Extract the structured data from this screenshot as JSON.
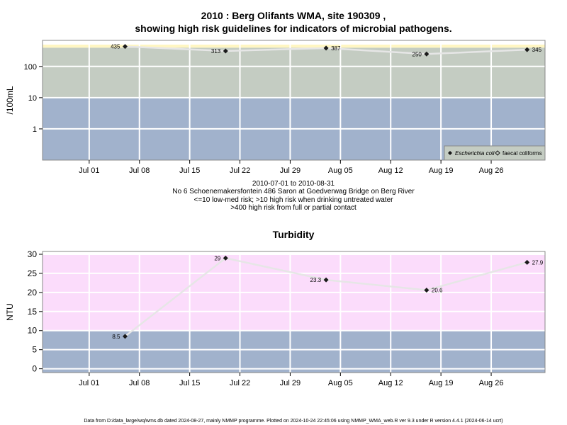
{
  "title_line1": "2010 : Berg Olifants WMA, site 190309 ,",
  "title_line2": "showing high risk guidelines for indicators of microbial pathogens.",
  "info": {
    "date_range": "2010-07-01 to 2010-08-31",
    "site_name": "No 6 Schoenemakersfontein 486 Saron at Goedverwag Bridge on Berg River",
    "guideline1": "<=10 low-med risk; >10 high risk when drinking untreated water",
    "guideline2": ">400 high risk from full or partial contact"
  },
  "footer": "Data from D:/data_large/wq/wms.db dated 2024-08-27, mainly NMMP programme. Plotted on 2024-10-24 22:45:06 using NMMP_WMA_web.R ver 9.3 under R version 4.4.1 (2024-06-14 ucrt)",
  "colors": {
    "band_low": "#a1b2cc",
    "band_mid": "#c4ccc2",
    "band_high": "#fff6c2",
    "turbidity_high": "#fbdcfb",
    "grid": "#ffffff",
    "series_line": "#e6e6e6",
    "point": "#1a1a1a"
  },
  "chart_data": [
    {
      "type": "line",
      "title": "",
      "xlabel": "",
      "ylabel": "/100mL",
      "y_scale": "log",
      "ylim": [
        0.1,
        500
      ],
      "grid": true,
      "legend_position": "bottom-right",
      "x_tick_labels": [
        "Jul 01",
        "Jul 08",
        "Jul 15",
        "Jul 22",
        "Jul 29",
        "Aug 05",
        "Aug 12",
        "Aug 19",
        "Aug 26"
      ],
      "y_tick_labels": [
        "1",
        "10",
        "100"
      ],
      "risk_bands": [
        {
          "from": 0.1,
          "to": 10,
          "color": "#a1b2cc"
        },
        {
          "from": 10,
          "to": 400,
          "color": "#c4ccc2"
        },
        {
          "from": 400,
          "to": 500,
          "color": "#fff6c2"
        }
      ],
      "series": [
        {
          "name": "Escherichia coli",
          "x": [
            "2010-07-06",
            "2010-07-20",
            "2010-08-03",
            "2010-08-17",
            "2010-08-31"
          ],
          "values": [
            435,
            313,
            387,
            250,
            345
          ],
          "labels": [
            "435",
            "313",
            "387",
            "250",
            "345"
          ]
        },
        {
          "name": "faecal coliforms",
          "x": [],
          "values": []
        }
      ]
    },
    {
      "type": "line",
      "title": "Turbidity",
      "xlabel": "",
      "ylabel": "NTU",
      "ylim": [
        -1,
        30
      ],
      "grid": true,
      "x_tick_labels": [
        "Jul 01",
        "Jul 08",
        "Jul 15",
        "Jul 22",
        "Jul 29",
        "Aug 05",
        "Aug 12",
        "Aug 19",
        "Aug 26"
      ],
      "y_tick_labels": [
        "0",
        "5",
        "10",
        "15",
        "20",
        "25",
        "30"
      ],
      "risk_bands": [
        {
          "from": -1,
          "to": 10,
          "color": "#a1b2cc"
        },
        {
          "from": 10,
          "to": 30,
          "color": "#fbdcfb"
        }
      ],
      "series": [
        {
          "name": "",
          "x": [
            "2010-07-06",
            "2010-07-20",
            "2010-08-03",
            "2010-08-17",
            "2010-08-31"
          ],
          "values": [
            8.5,
            29,
            23.3,
            20.6,
            27.9
          ],
          "labels": [
            "8.5",
            "29",
            "23.3",
            "20.6",
            "27.9"
          ]
        }
      ]
    }
  ]
}
